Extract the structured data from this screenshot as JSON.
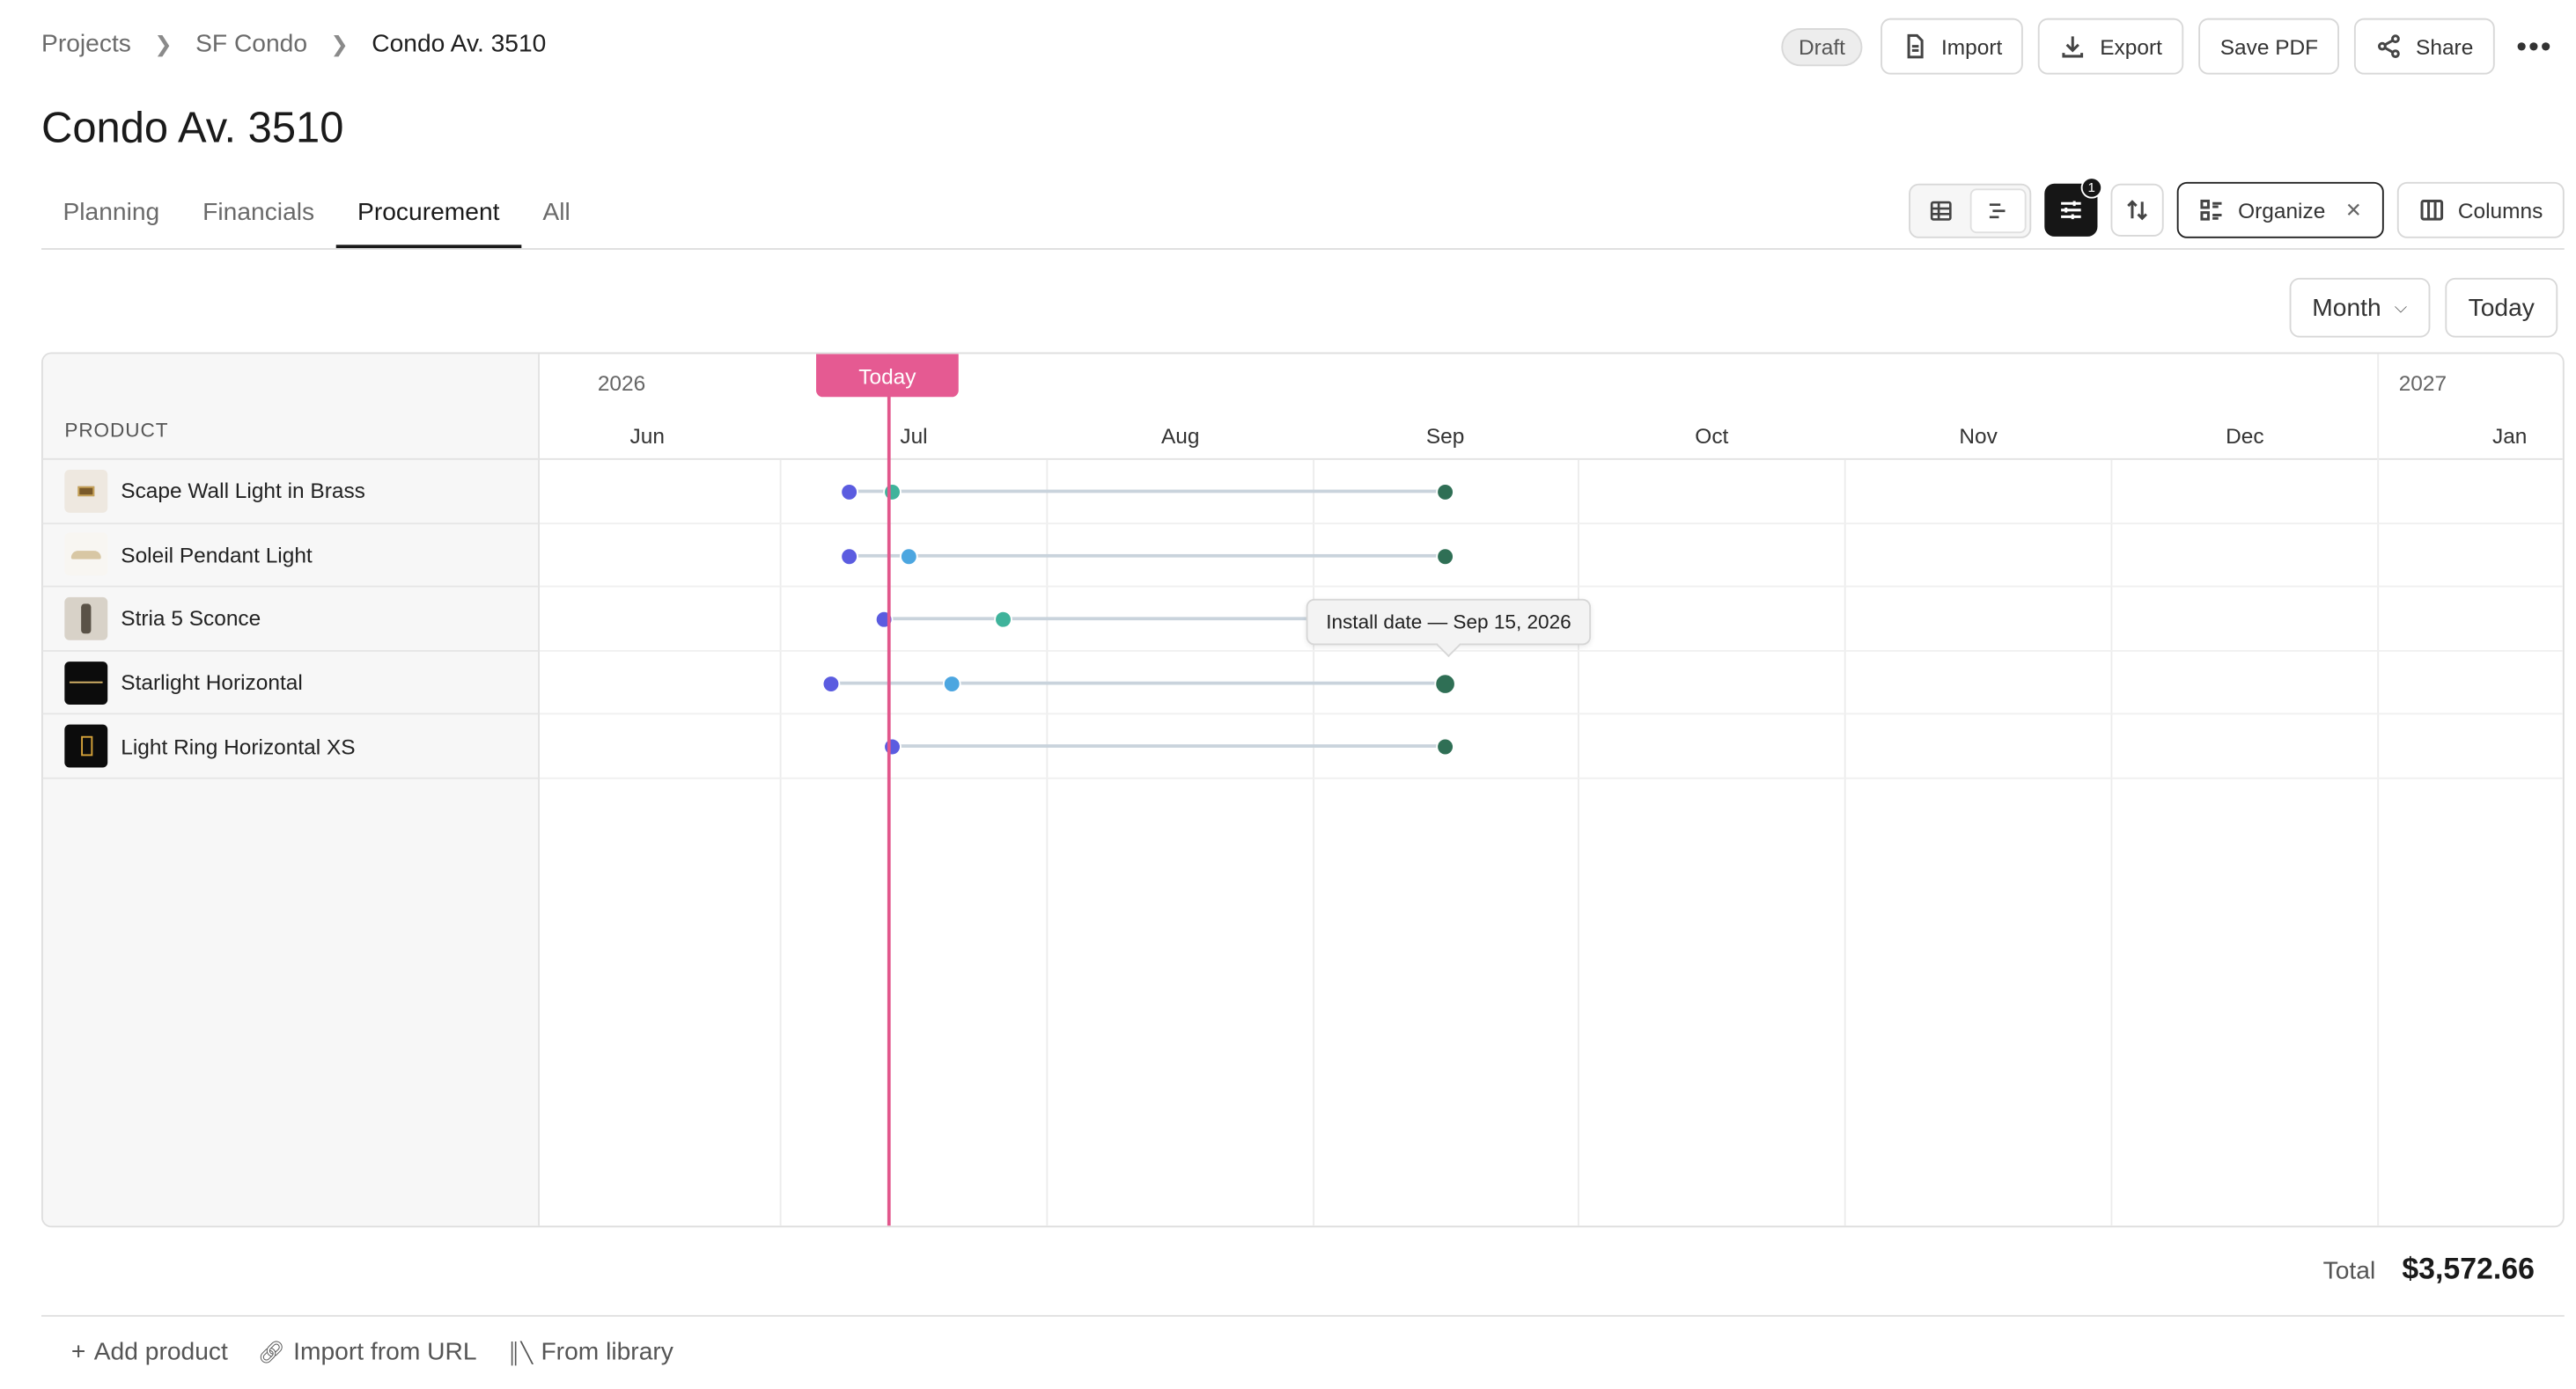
{
  "breadcrumb": [
    "Projects",
    "SF Condo",
    "Condo Av. 3510"
  ],
  "status_badge": "Draft",
  "header_buttons": {
    "import": "Import",
    "export": "Export",
    "save_pdf": "Save PDF",
    "share": "Share"
  },
  "page_title": "Condo Av. 3510",
  "tabs": [
    "Planning",
    "Financials",
    "Procurement",
    "All"
  ],
  "active_tab": "Procurement",
  "toolbar": {
    "filter_count": "1",
    "organize_label": "Organize",
    "columns_label": "Columns"
  },
  "calendar": {
    "view_select": "Month",
    "today_button": "Today",
    "today_tag": "Today",
    "years": [
      "2026",
      "2027"
    ],
    "months": [
      "Jun",
      "Jul",
      "Aug",
      "Sep",
      "Oct",
      "Nov",
      "Dec",
      "Jan"
    ]
  },
  "grid": {
    "column_header": "PRODUCT",
    "rows": [
      {
        "name": "Scape Wall Light in Brass",
        "thumb": "brass-wall-light"
      },
      {
        "name": "Soleil Pendant Light",
        "thumb": "pendant-light"
      },
      {
        "name": "Stria 5 Sconce",
        "thumb": "sconce"
      },
      {
        "name": "Starlight Horizontal",
        "thumb": "starlight"
      },
      {
        "name": "Light Ring Horizontal XS",
        "thumb": "light-ring"
      }
    ]
  },
  "tooltip": "Install date — Sep 15, 2026",
  "total": {
    "label": "Total",
    "value": "$3,572.66"
  },
  "footer_actions": {
    "add_product": "Add product",
    "import_url": "Import from URL",
    "from_library": "From library"
  },
  "colors": {
    "today": "#e55a92",
    "order_dot": "#5b5ce0",
    "ship_dot": "#4ca6e0",
    "delivery_dot": "#3fb39b",
    "install_dot": "#2f6f55"
  }
}
